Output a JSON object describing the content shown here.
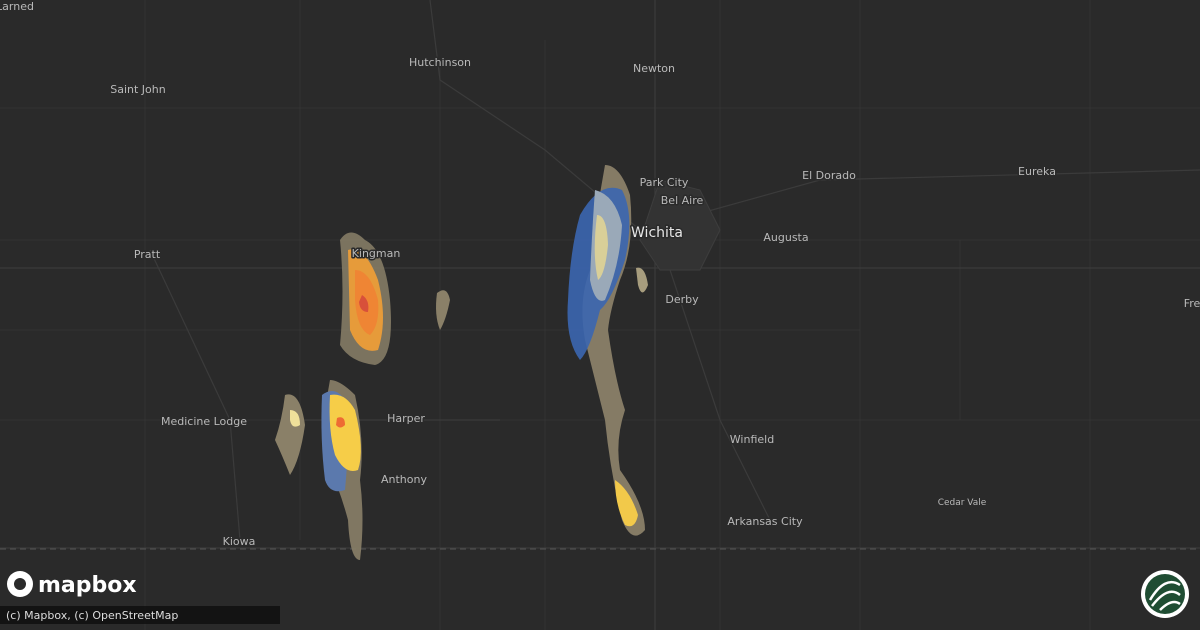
{
  "map": {
    "places": [
      "Larned",
      "Hutchinson",
      "Newton",
      "Saint John",
      "Park City",
      "Bel Aire",
      "Wichita",
      "El Dorado",
      "Eureka",
      "Pratt",
      "Kingman",
      "Augusta",
      "Derby",
      "Medicine Lodge",
      "Harper",
      "Winfield",
      "Anthony",
      "Cedar Vale",
      "Arkansas City",
      "Kiowa",
      "Fre"
    ],
    "logo": "mapbox",
    "attribution": "(c) Mapbox, (c) OpenStreetMap"
  }
}
